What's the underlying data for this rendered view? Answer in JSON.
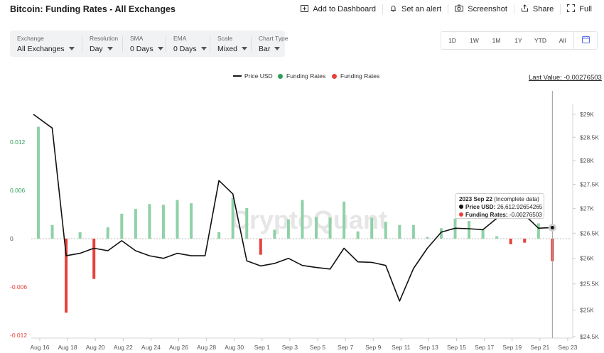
{
  "header": {
    "title": "Bitcoin: Funding Rates - All Exchanges",
    "actions": [
      {
        "label": "Add to Dashboard",
        "icon": "dashboard-add-icon"
      },
      {
        "label": "Set an alert",
        "icon": "bell-icon"
      },
      {
        "label": "Screenshot",
        "icon": "camera-icon"
      },
      {
        "label": "Share",
        "icon": "share-icon"
      },
      {
        "label": "Full",
        "icon": "fullscreen-icon"
      }
    ]
  },
  "controls": [
    {
      "label": "Exchange",
      "value": "All Exchanges"
    },
    {
      "label": "Resolution",
      "value": "Day"
    },
    {
      "label": "SMA",
      "value": "0 Days"
    },
    {
      "label": "EMA",
      "value": "0 Days"
    },
    {
      "label": "Scale",
      "value": "Mixed"
    },
    {
      "label": "Chart Type",
      "value": "Bar"
    }
  ],
  "ranges": [
    "1D",
    "1W",
    "1M",
    "1Y",
    "YTD",
    "All"
  ],
  "legend": [
    {
      "label": "Price USD",
      "color": "#1a1a1a",
      "kind": "line"
    },
    {
      "label": "Funding Rates",
      "color": "#2e9e5b",
      "kind": "dot"
    },
    {
      "label": "Funding Rates",
      "color": "#e8413a",
      "kind": "dot"
    }
  ],
  "last_value": "Last Value: -0.00276503",
  "tooltip": {
    "date": "2023 Sep 22",
    "note": "(Incomplete data)",
    "price_label": "Price USD:",
    "price_value": "26,612.92654265",
    "rate_label": "Funding Rates:",
    "rate_value": "-0.00276503"
  },
  "watermark": "CryptoQuant",
  "colors": {
    "positive_bar": "#8fd1a8",
    "negative_bar": "#e8413a",
    "price_line": "#111111",
    "left_axis_positive": "#2e9e5b",
    "left_axis_negative": "#e8413a"
  },
  "chart_data": {
    "type": "bar",
    "title": "Bitcoin: Funding Rates - All Exchanges",
    "x": [
      "Aug 16",
      "Aug 17",
      "Aug 18",
      "Aug 19",
      "Aug 20",
      "Aug 21",
      "Aug 22",
      "Aug 23",
      "Aug 24",
      "Aug 25",
      "Aug 26",
      "Aug 27",
      "Aug 28",
      "Aug 29",
      "Aug 30",
      "Aug 31",
      "Sep 1",
      "Sep 2",
      "Sep 3",
      "Sep 4",
      "Sep 5",
      "Sep 6",
      "Sep 7",
      "Sep 8",
      "Sep 9",
      "Sep 10",
      "Sep 11",
      "Sep 12",
      "Sep 13",
      "Sep 14",
      "Sep 15",
      "Sep 16",
      "Sep 17",
      "Sep 18",
      "Sep 19",
      "Sep 20",
      "Sep 21",
      "Sep 22"
    ],
    "x_tick_labels": [
      "Aug 16",
      "Aug 18",
      "Aug 20",
      "Aug 22",
      "Aug 24",
      "Aug 26",
      "Aug 28",
      "Aug 30",
      "Sep 1",
      "Sep 3",
      "Sep 5",
      "Sep 7",
      "Sep 9",
      "Sep 11",
      "Sep 13",
      "Sep 15",
      "Sep 17",
      "Sep 19",
      "Sep 21",
      "Sep 23"
    ],
    "series": [
      {
        "name": "Funding Rates",
        "axis": "left",
        "values": [
          0.0139,
          0.0017,
          -0.0092,
          0.0008,
          -0.005,
          0.0014,
          0.0031,
          0.0037,
          0.0043,
          0.0042,
          0.0048,
          0.0044,
          0,
          0.0008,
          0.0051,
          0.0038,
          -0.002,
          0.0011,
          0.0024,
          0.0048,
          0.0027,
          0.0026,
          0.0046,
          0.0009,
          0.0026,
          0.0021,
          0.0017,
          0.0017,
          0.0002,
          0.0013,
          0.0025,
          0.0022,
          0.0011,
          0.0003,
          -0.0007,
          -0.0005,
          0.0019,
          -0.0028
        ]
      },
      {
        "name": "Price USD",
        "axis": "right",
        "values": [
          29000,
          28700,
          26050,
          26100,
          26200,
          26150,
          26350,
          26150,
          26050,
          26000,
          26100,
          26050,
          26050,
          27580,
          27300,
          25950,
          25850,
          25900,
          26000,
          25860,
          25820,
          25790,
          26200,
          25930,
          25920,
          25860,
          25170,
          25800,
          26200,
          26520,
          26600,
          26590,
          26570,
          26800,
          26850,
          26870,
          26600,
          26613
        ]
      }
    ],
    "y_left": {
      "ticks": [
        0.012,
        0.006,
        0,
        -0.006,
        -0.012
      ],
      "tick_labels": [
        "0.012",
        "0.006",
        "0",
        "-0.006",
        "-0.012"
      ],
      "ylim": [
        -0.012,
        0.0138
      ]
    },
    "y_right": {
      "ticks": [
        29000,
        28500,
        28000,
        27500,
        27000,
        26500,
        26000,
        25500,
        25000,
        24500
      ],
      "tick_labels": [
        "$29K",
        "$28.5K",
        "$28K",
        "$27.5K",
        "$27K",
        "$26.5K",
        "$26K",
        "$25.5K",
        "$25K",
        "$24.5K"
      ],
      "ylim": [
        24500,
        29000
      ],
      "scale": "log"
    },
    "grid": false,
    "legend_position": "top-center"
  }
}
